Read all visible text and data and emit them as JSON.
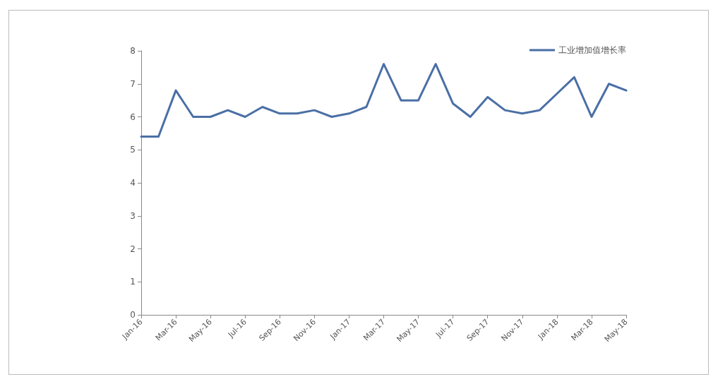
{
  "chart_data": {
    "type": "line",
    "categories": [
      "Jan-16",
      null,
      "Mar-16",
      null,
      "May-16",
      null,
      "Jul-16",
      null,
      "Sep-16",
      null,
      "Nov-16",
      null,
      "Jan-17",
      null,
      "Mar-17",
      null,
      "May-17",
      null,
      "Jul-17",
      null,
      "Sep-17",
      null,
      "Nov-17",
      null,
      "Jan-18",
      null,
      "Mar-18",
      null,
      "May-18"
    ],
    "series": [
      {
        "name": "工业增加值增长率",
        "color": "#4a6fa5",
        "values": [
          5.4,
          5.4,
          6.8,
          6.0,
          6.0,
          6.2,
          6.0,
          6.3,
          6.1,
          6.1,
          6.2,
          6.0,
          6.1,
          6.3,
          7.6,
          6.5,
          6.5,
          7.6,
          6.4,
          6.0,
          6.6,
          6.2,
          6.1,
          6.2,
          6.7,
          7.2,
          6.0,
          7.0,
          6.8
        ]
      }
    ],
    "ylim": [
      0,
      8
    ],
    "yticks": [
      0,
      1,
      2,
      3,
      4,
      5,
      6,
      7,
      8
    ],
    "grid": false,
    "legend": "top right",
    "marker": "none",
    "line_style": "solid"
  }
}
